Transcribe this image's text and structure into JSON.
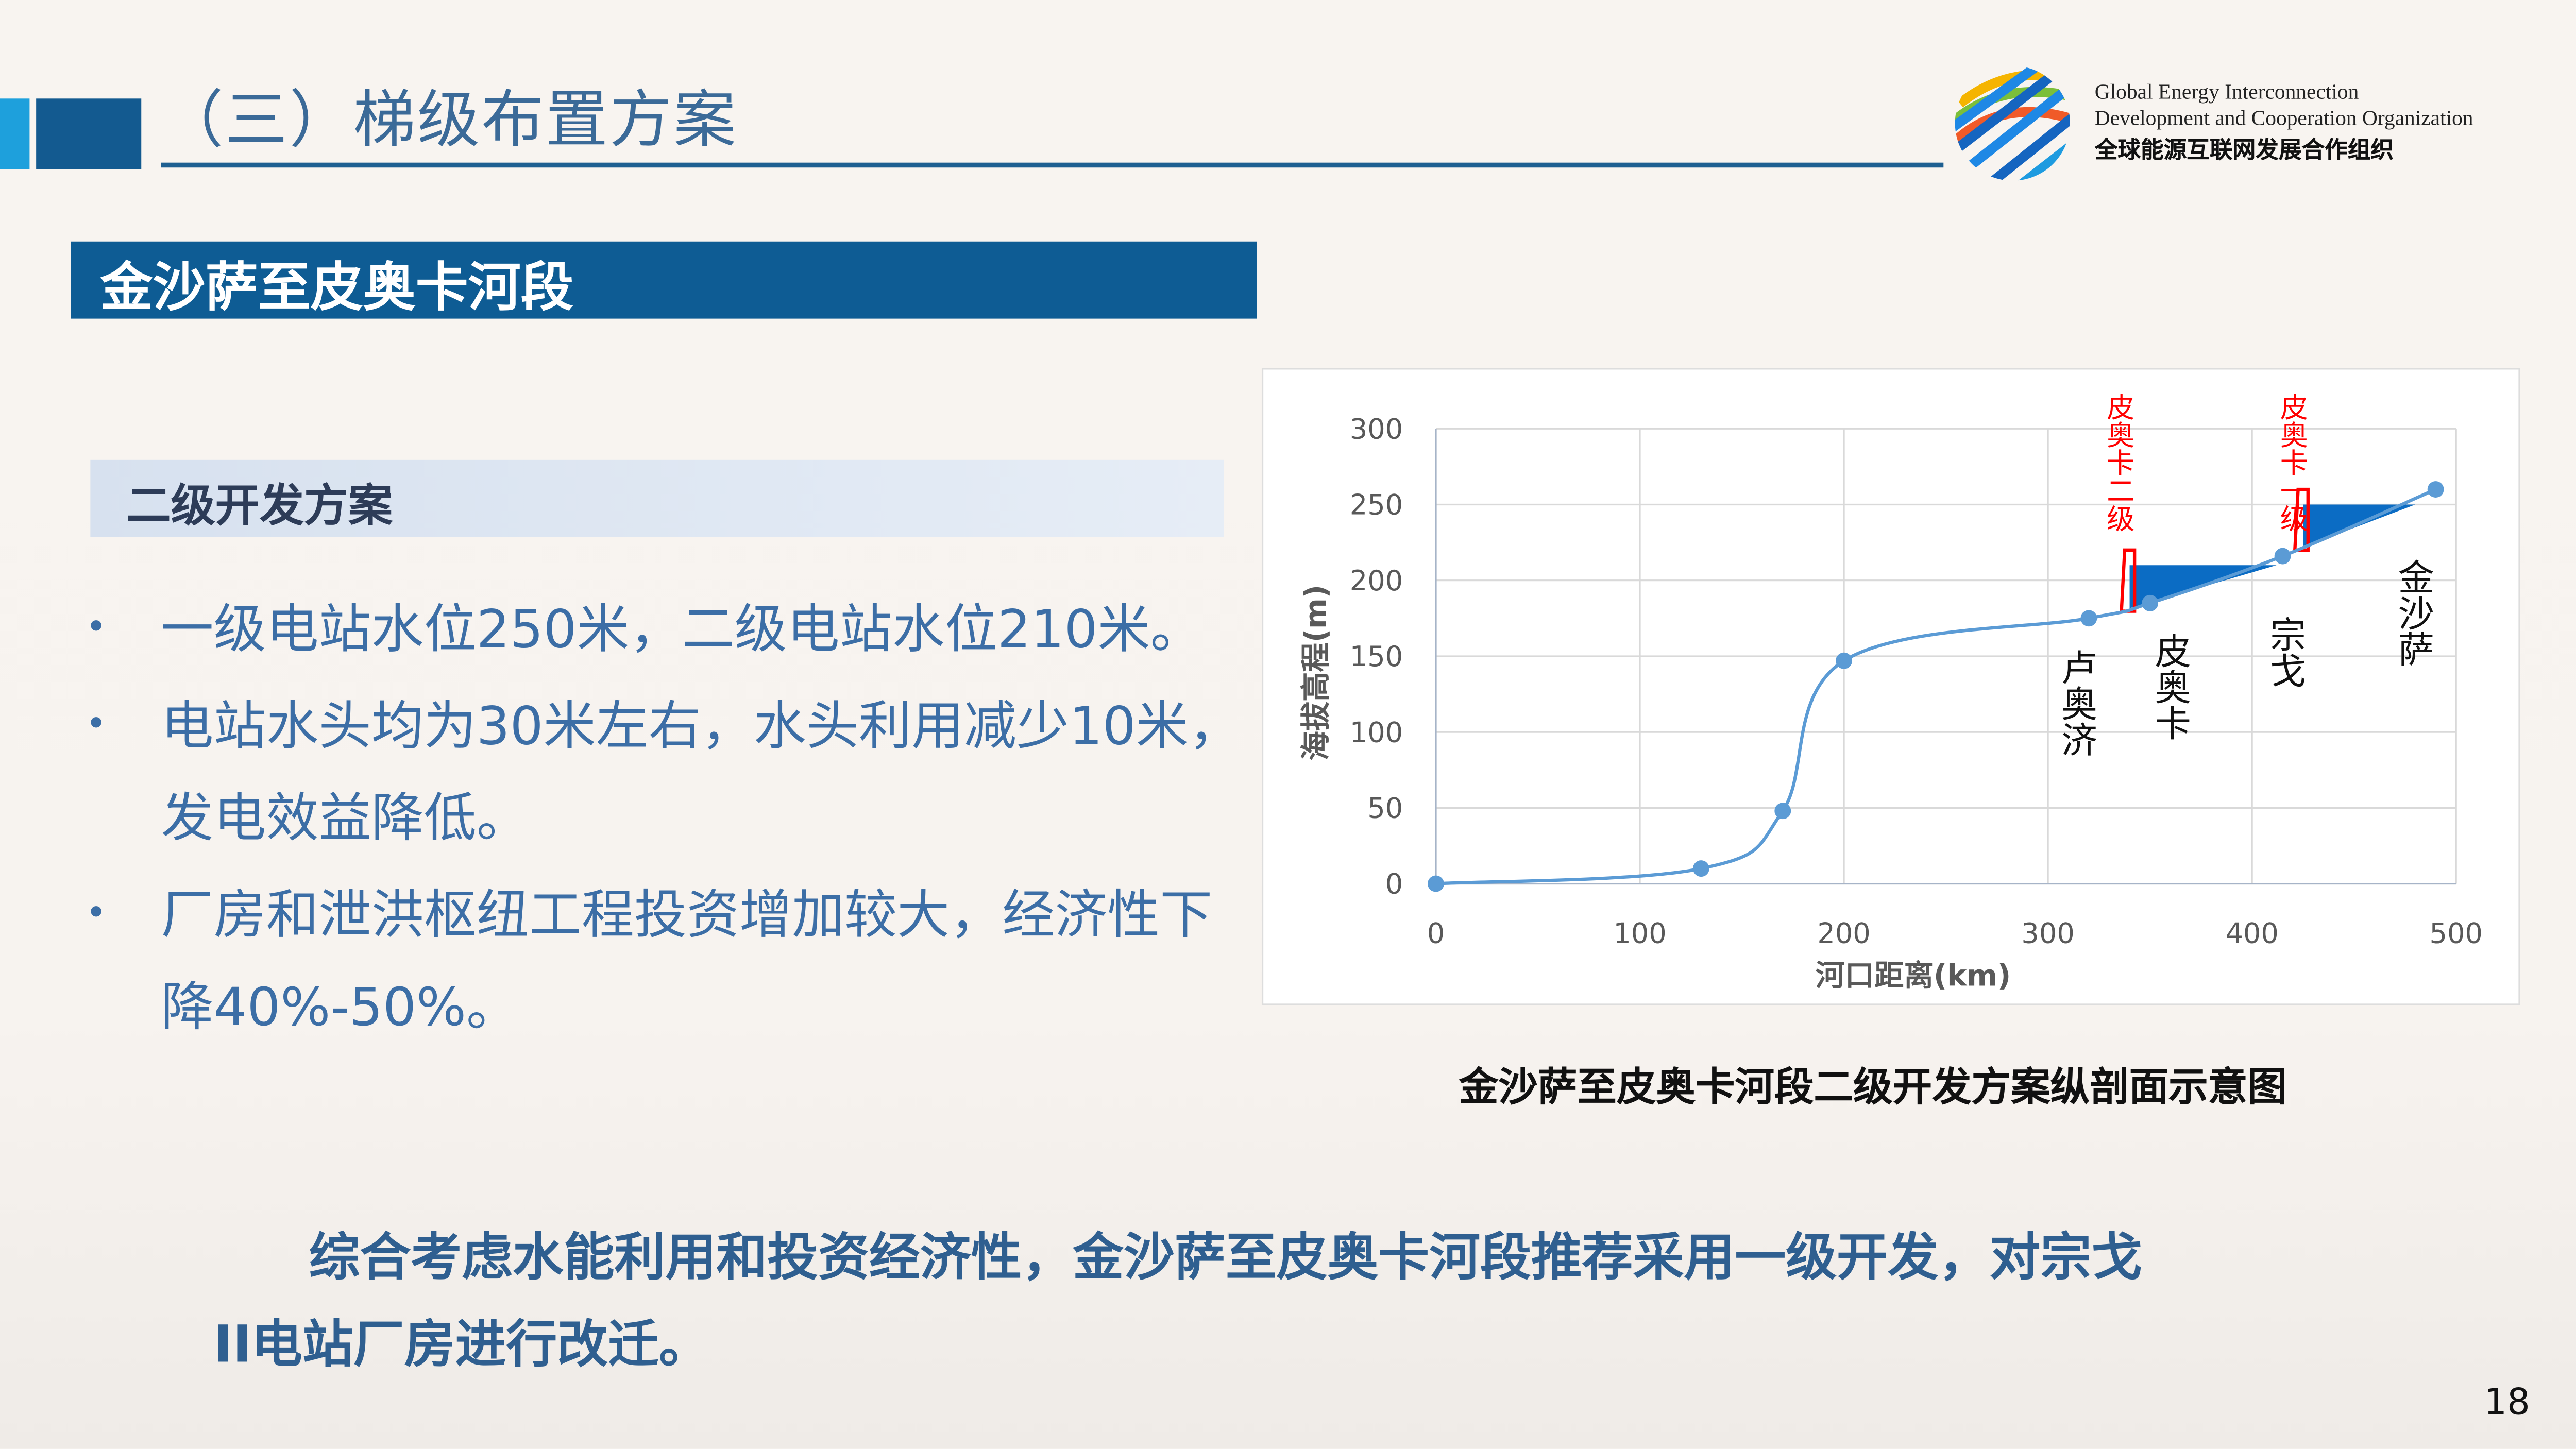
{
  "header": {
    "title": "（三）梯级布置方案",
    "org": {
      "en_line1": "Global Energy Interconnection",
      "en_line2": "Development and Cooperation Organization",
      "cn": "全球能源互联网发展合作组织"
    }
  },
  "section_banner": "金沙萨至皮奥卡河段",
  "subheading": "二级开发方案",
  "bullets": [
    "一级电站水位250米，二级电站水位210米。",
    "电站水头均为30米左右，水头利用减少10米，发电效益降低。",
    "厂房和泄洪枢纽工程投资增加较大，经济性下降40%-50%。"
  ],
  "chart_data": {
    "type": "line",
    "xlabel": "河口距离(km)",
    "ylabel": "海拔高程(m)",
    "xlim": [
      0,
      500
    ],
    "ylim": [
      0,
      300
    ],
    "xticks": [
      "0",
      "100",
      "200",
      "300",
      "400",
      "500"
    ],
    "yticks": [
      "0",
      "50",
      "100",
      "150",
      "200",
      "250",
      "300"
    ],
    "grid": true,
    "line_color": "#5b9bd5",
    "x": [
      0,
      130,
      170,
      200,
      320,
      350,
      415,
      490
    ],
    "y": [
      0,
      10,
      48,
      147,
      175,
      185,
      216,
      260
    ],
    "stations": [
      {
        "label": "卢奥济",
        "x": 320
      },
      {
        "label": "皮奥卡",
        "x": 350
      },
      {
        "label": "宗戈",
        "x": 415
      },
      {
        "label": "金沙萨",
        "x": 490
      }
    ],
    "dams": [
      {
        "label": "皮奥卡二级",
        "x": 340,
        "water_level": 210,
        "reservoir_end": 412
      },
      {
        "label": "皮奥卡一级",
        "x": 425,
        "water_level": 250,
        "reservoir_end": 480
      }
    ],
    "dam_color": "#ff0000",
    "reservoir_color": "#0b6cc4"
  },
  "caption": "金沙萨至皮奥卡河段二级开发方案纵剖面示意图",
  "conclusion": {
    "line1": "综合考虑水能利用和投资经济性，金沙萨至皮奥卡河段推荐采用一级开发，对宗戈",
    "line2": "II电站厂房进行改迁。"
  },
  "page_number": "18"
}
